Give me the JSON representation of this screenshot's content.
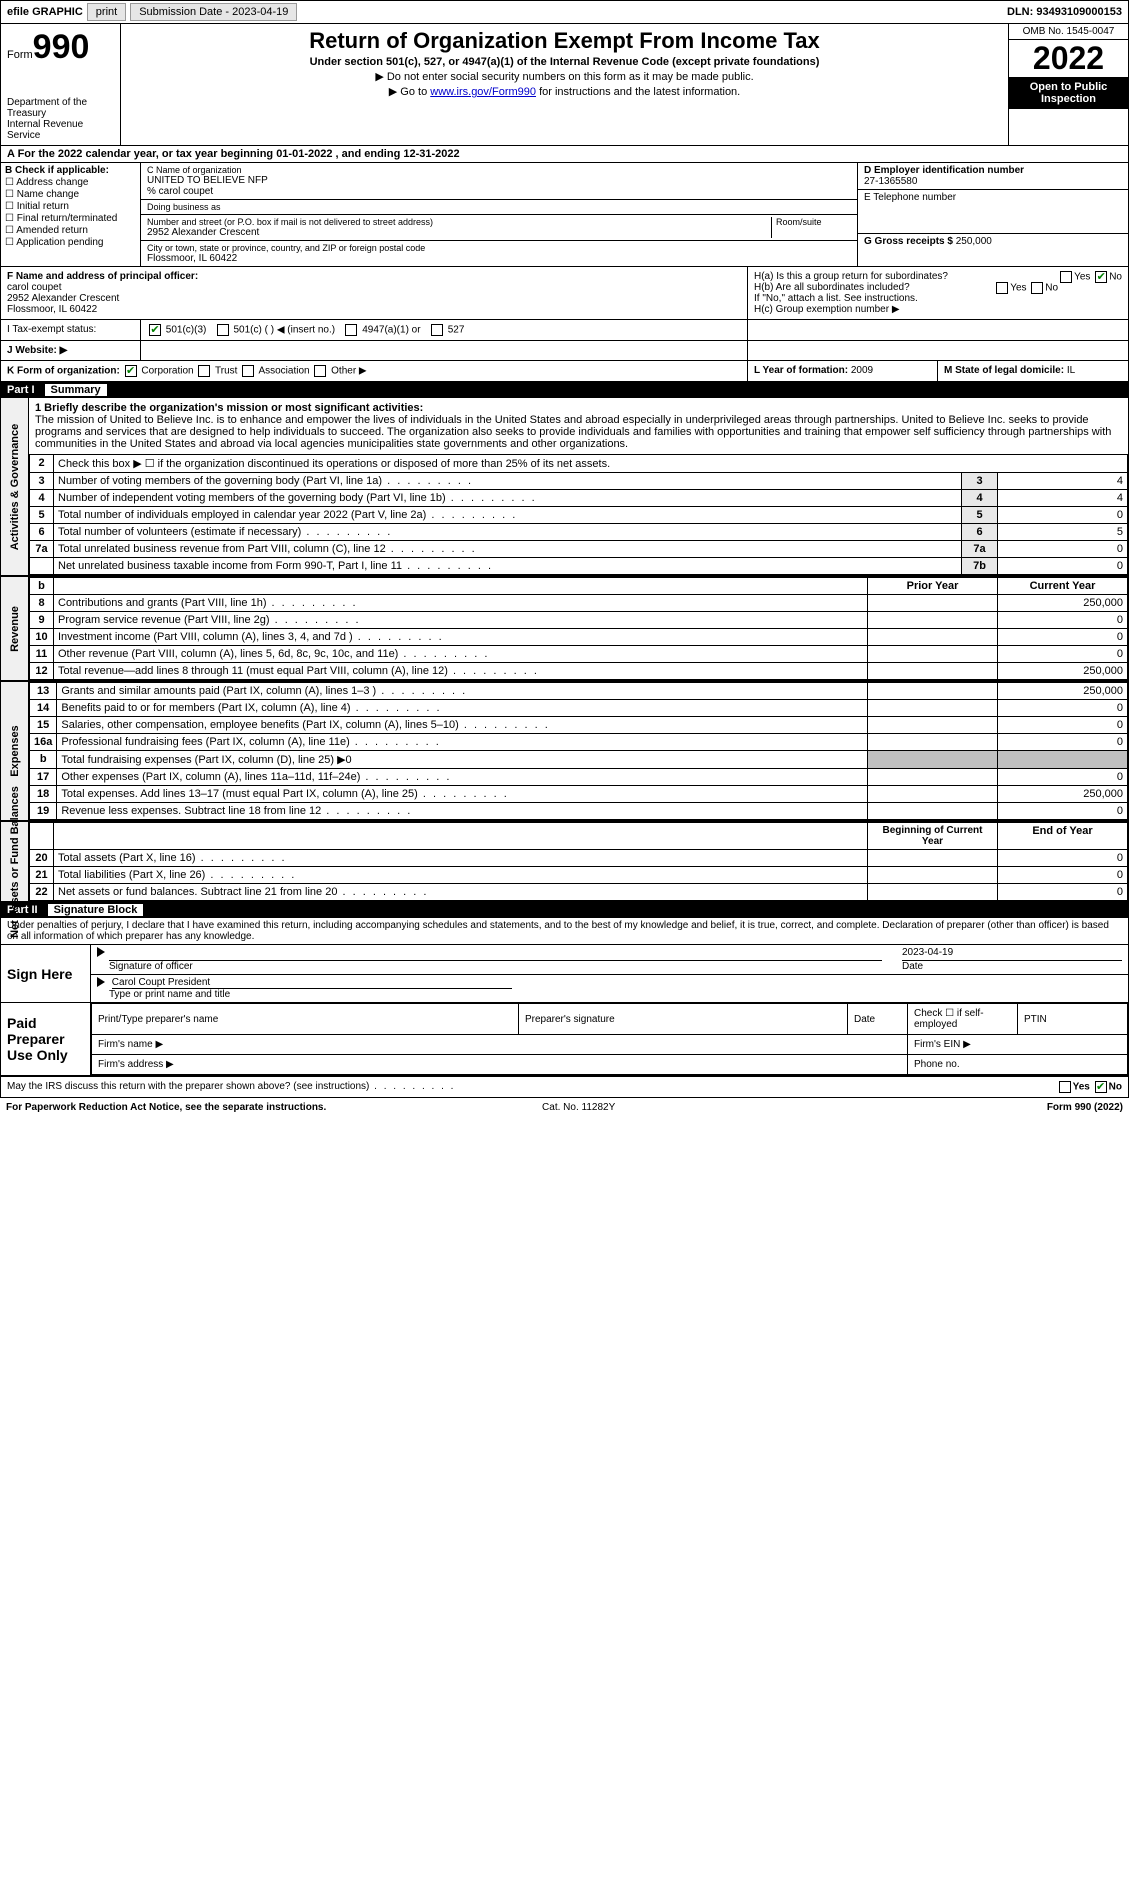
{
  "topbar": {
    "efile": "efile GRAPHIC",
    "print": "print",
    "sub_label": "Submission Date - 2023-04-19",
    "dln": "DLN: 93493109000153"
  },
  "header": {
    "form_word": "Form",
    "form_num": "990",
    "dept": "Department of the Treasury",
    "irs": "Internal Revenue Service",
    "title": "Return of Organization Exempt From Income Tax",
    "sub": "Under section 501(c), 527, or 4947(a)(1) of the Internal Revenue Code (except private foundations)",
    "note1": "▶ Do not enter social security numbers on this form as it may be made public.",
    "note2_pre": "▶ Go to ",
    "note2_link": "www.irs.gov/Form990",
    "note2_post": " for instructions and the latest information.",
    "omb": "OMB No. 1545-0047",
    "year": "2022",
    "inspect": "Open to Public Inspection"
  },
  "rowA": "A For the 2022 calendar year, or tax year beginning 01-01-2022   , and ending 12-31-2022",
  "boxB": {
    "hdr": "B Check if applicable:",
    "c1": "Address change",
    "c2": "Name change",
    "c3": "Initial return",
    "c4": "Final return/terminated",
    "c5": "Amended return",
    "c6": "Application pending"
  },
  "boxC": {
    "lbl_name": "C Name of organization",
    "name": "UNITED TO BELIEVE NFP",
    "care": "% carol coupet",
    "dba_lbl": "Doing business as",
    "addr_lbl": "Number and street (or P.O. box if mail is not delivered to street address)",
    "addr": "2952 Alexander Crescent",
    "room_lbl": "Room/suite",
    "city_lbl": "City or town, state or province, country, and ZIP or foreign postal code",
    "city": "Flossmoor, IL  60422"
  },
  "boxD": {
    "lbl": "D Employer identification number",
    "val": "27-1365580"
  },
  "boxE": {
    "lbl": "E Telephone number"
  },
  "boxG": {
    "lbl": "G Gross receipts $",
    "val": "250,000"
  },
  "boxF": {
    "lbl": "F  Name and address of principal officer:",
    "name": "carol coupet",
    "addr1": "2952 Alexander Crescent",
    "addr2": "Flossmoor, IL  60422"
  },
  "boxH": {
    "a": "H(a)  Is this a group return for subordinates?",
    "b": "H(b)  Are all subordinates included?",
    "bnote": "If \"No,\" attach a list. See instructions.",
    "c": "H(c)  Group exemption number ▶",
    "yes": "Yes",
    "no": "No"
  },
  "rowI": {
    "lbl": "I   Tax-exempt status:",
    "o1": "501(c)(3)",
    "o2": "501(c) (  ) ◀ (insert no.)",
    "o3": "4947(a)(1) or",
    "o4": "527"
  },
  "rowJ": {
    "lbl": "J   Website: ▶"
  },
  "rowK": {
    "lbl": "K Form of organization:",
    "o1": "Corporation",
    "o2": "Trust",
    "o3": "Association",
    "o4": "Other ▶"
  },
  "rowL": {
    "lbl": "L Year of formation:",
    "val": "2009"
  },
  "rowM": {
    "lbl": "M State of legal domicile:",
    "val": "IL"
  },
  "part1": {
    "pt": "Part I",
    "title": "Summary"
  },
  "sidebars": {
    "s1": "Activities & Governance",
    "s2": "Revenue",
    "s3": "Expenses",
    "s4": "Net Assets or Fund Balances"
  },
  "mission": {
    "lbl": "1   Briefly describe the organization's mission or most significant activities:",
    "text": "The mission of United to Believe Inc. is to enhance and empower the lives of individuals in the United States and abroad especially in underprivileged areas through partnerships. United to Believe Inc. seeks to provide programs and services that are designed to help individuals to succeed. The organization also seeks to provide individuals and families with opportunities and training that empower self sufficiency through partnerships with communities in the United States and abroad via local agencies municipalities state governments and other organizations."
  },
  "lines_gov": [
    {
      "n": "2",
      "d": "Check this box ▶ ☐ if the organization discontinued its operations or disposed of more than 25% of its net assets."
    },
    {
      "n": "3",
      "d": "Number of voting members of the governing body (Part VI, line 1a)",
      "box": "3",
      "v": "4"
    },
    {
      "n": "4",
      "d": "Number of independent voting members of the governing body (Part VI, line 1b)",
      "box": "4",
      "v": "4"
    },
    {
      "n": "5",
      "d": "Total number of individuals employed in calendar year 2022 (Part V, line 2a)",
      "box": "5",
      "v": "0"
    },
    {
      "n": "6",
      "d": "Total number of volunteers (estimate if necessary)",
      "box": "6",
      "v": "5"
    },
    {
      "n": "7a",
      "d": "Total unrelated business revenue from Part VIII, column (C), line 12",
      "box": "7a",
      "v": "0"
    },
    {
      "n": "",
      "d": "Net unrelated business taxable income from Form 990-T, Part I, line 11",
      "box": "7b",
      "v": "0"
    }
  ],
  "col_hdrs": {
    "b": "b",
    "prior": "Prior Year",
    "curr": "Current Year"
  },
  "lines_rev": [
    {
      "n": "8",
      "d": "Contributions and grants (Part VIII, line 1h)",
      "p": "",
      "c": "250,000"
    },
    {
      "n": "9",
      "d": "Program service revenue (Part VIII, line 2g)",
      "p": "",
      "c": "0"
    },
    {
      "n": "10",
      "d": "Investment income (Part VIII, column (A), lines 3, 4, and 7d )",
      "p": "",
      "c": "0"
    },
    {
      "n": "11",
      "d": "Other revenue (Part VIII, column (A), lines 5, 6d, 8c, 9c, 10c, and 11e)",
      "p": "",
      "c": "0"
    },
    {
      "n": "12",
      "d": "Total revenue—add lines 8 through 11 (must equal Part VIII, column (A), line 12)",
      "p": "",
      "c": "250,000"
    }
  ],
  "lines_exp": [
    {
      "n": "13",
      "d": "Grants and similar amounts paid (Part IX, column (A), lines 1–3 )",
      "p": "",
      "c": "250,000"
    },
    {
      "n": "14",
      "d": "Benefits paid to or for members (Part IX, column (A), line 4)",
      "p": "",
      "c": "0"
    },
    {
      "n": "15",
      "d": "Salaries, other compensation, employee benefits (Part IX, column (A), lines 5–10)",
      "p": "",
      "c": "0"
    },
    {
      "n": "16a",
      "d": "Professional fundraising fees (Part IX, column (A), line 11e)",
      "p": "",
      "c": "0"
    },
    {
      "n": "b",
      "d": "Total fundraising expenses (Part IX, column (D), line 25) ▶0",
      "grey": true
    },
    {
      "n": "17",
      "d": "Other expenses (Part IX, column (A), lines 11a–11d, 11f–24e)",
      "p": "",
      "c": "0"
    },
    {
      "n": "18",
      "d": "Total expenses. Add lines 13–17 (must equal Part IX, column (A), line 25)",
      "p": "",
      "c": "250,000"
    },
    {
      "n": "19",
      "d": "Revenue less expenses. Subtract line 18 from line 12",
      "p": "",
      "c": "0"
    }
  ],
  "col_hdrs2": {
    "prior": "Beginning of Current Year",
    "curr": "End of Year"
  },
  "lines_net": [
    {
      "n": "20",
      "d": "Total assets (Part X, line 16)",
      "p": "",
      "c": "0"
    },
    {
      "n": "21",
      "d": "Total liabilities (Part X, line 26)",
      "p": "",
      "c": "0"
    },
    {
      "n": "22",
      "d": "Net assets or fund balances. Subtract line 21 from line 20",
      "p": "",
      "c": "0"
    }
  ],
  "part2": {
    "pt": "Part II",
    "title": "Signature Block"
  },
  "penalty": "Under penalties of perjury, I declare that I have examined this return, including accompanying schedules and statements, and to the best of my knowledge and belief, it is true, correct, and complete. Declaration of preparer (other than officer) is based on all information of which preparer has any knowledge.",
  "sign": {
    "here": "Sign Here",
    "sig_lbl": "Signature of officer",
    "date_lbl": "Date",
    "date": "2023-04-19",
    "name": "Carol Coupt President",
    "name_lbl": "Type or print name and title"
  },
  "paid": {
    "hdr": "Paid Preparer Use Only",
    "c1": "Print/Type preparer's name",
    "c2": "Preparer's signature",
    "c3": "Date",
    "c4": "Check ☐ if self-employed",
    "c5": "PTIN",
    "f1": "Firm's name   ▶",
    "f2": "Firm's EIN ▶",
    "f3": "Firm's address ▶",
    "f4": "Phone no."
  },
  "footer": {
    "q": "May the IRS discuss this return with the preparer shown above? (see instructions)",
    "yes": "Yes",
    "no": "No",
    "pra": "For Paperwork Reduction Act Notice, see the separate instructions.",
    "cat": "Cat. No. 11282Y",
    "form": "Form 990 (2022)"
  }
}
